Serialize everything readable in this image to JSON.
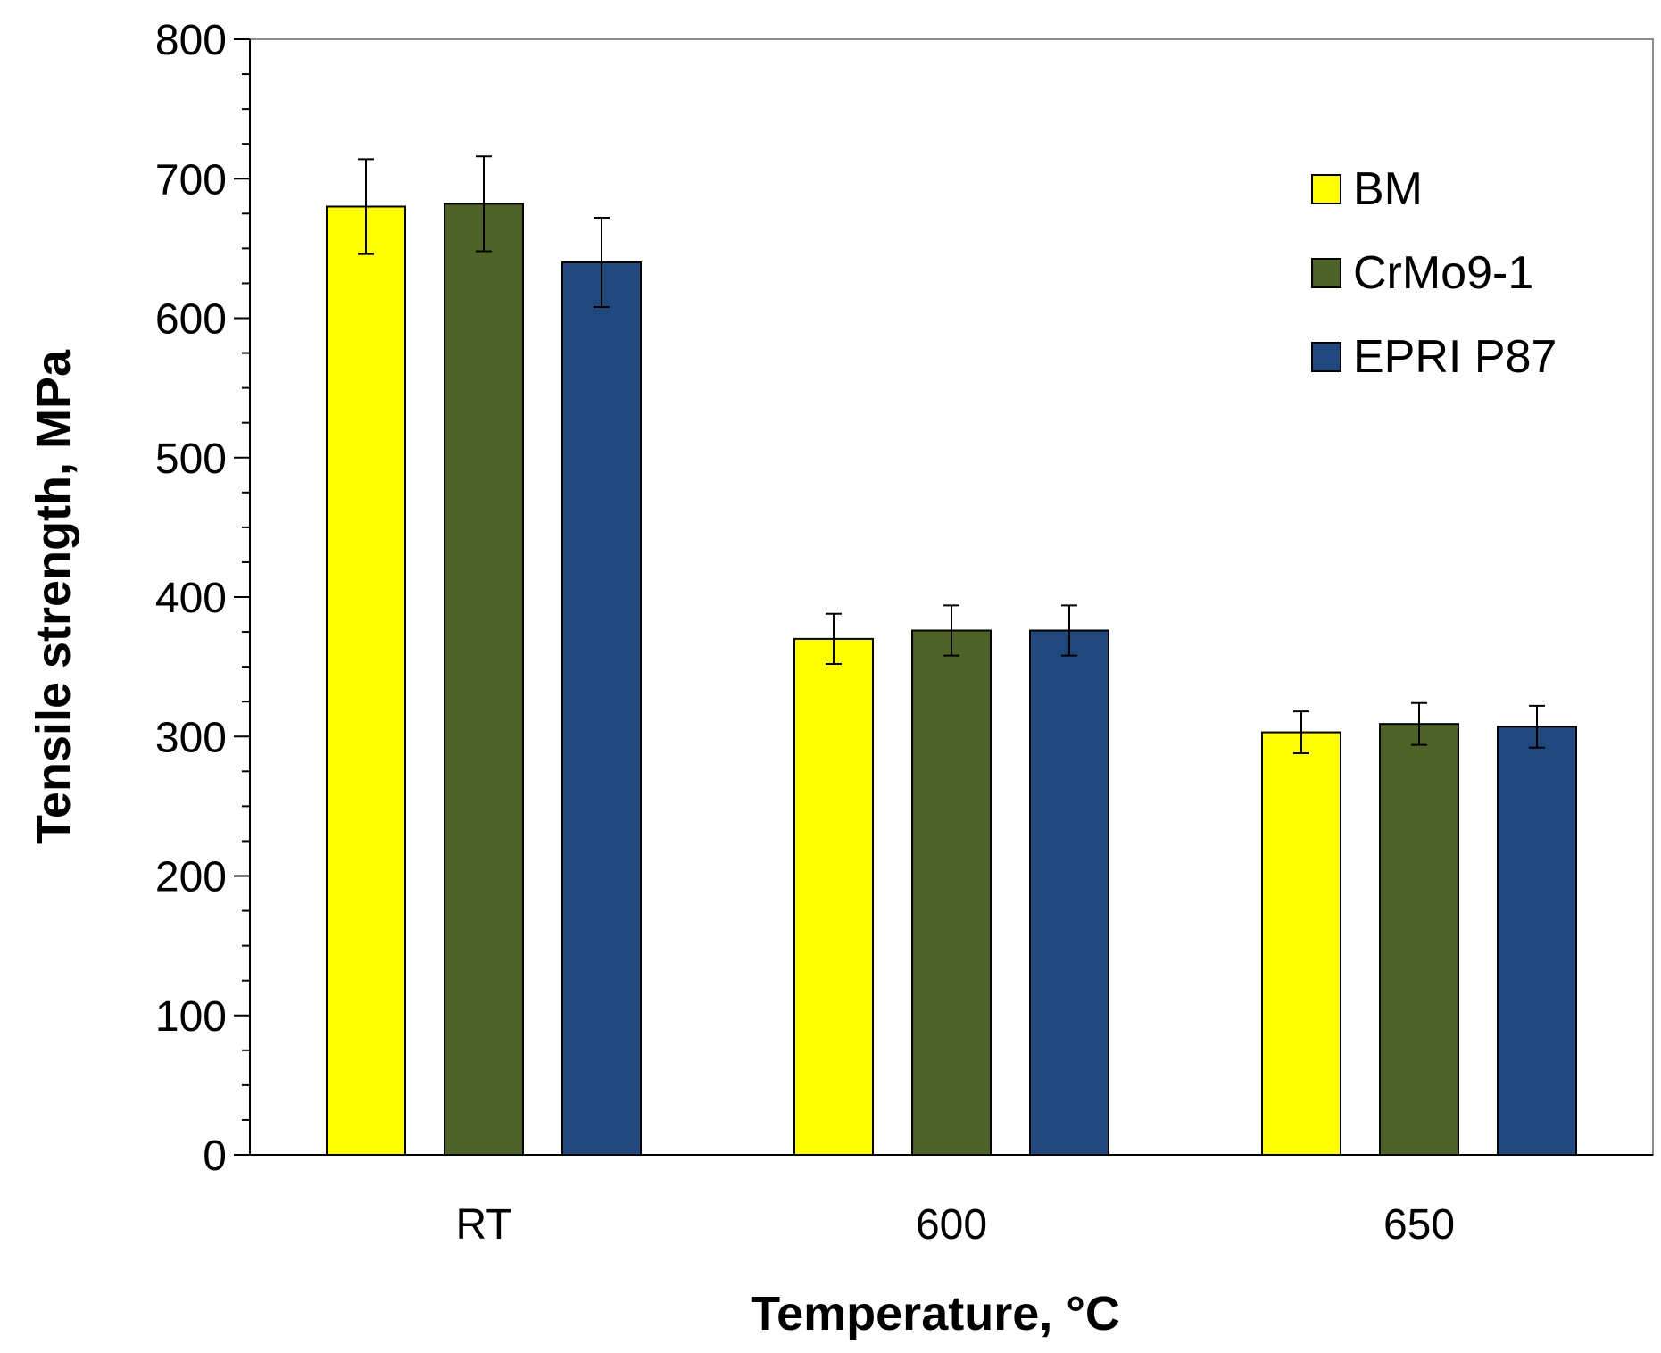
{
  "chart_data": {
    "type": "bar",
    "title": "",
    "xlabel": "Temperature, °C",
    "ylabel": "Tensile strength, MPa",
    "categories": [
      "RT",
      "600",
      "650"
    ],
    "ylim": [
      0,
      800
    ],
    "ytick_step": 100,
    "yticks": [
      "0",
      "100",
      "200",
      "300",
      "400",
      "500",
      "600",
      "700",
      "800"
    ],
    "grid": false,
    "legend_position": "top-right",
    "series": [
      {
        "name": "BM",
        "color": "#ffff00",
        "values": [
          680,
          370,
          303
        ],
        "errors": [
          34,
          18,
          15
        ]
      },
      {
        "name": "CrMo9-1",
        "color": "#4f6228",
        "values": [
          682,
          376,
          309
        ],
        "errors": [
          34,
          18,
          15
        ]
      },
      {
        "name": "EPRI P87",
        "color": "#1f497d",
        "values": [
          640,
          376,
          307
        ],
        "errors": [
          32,
          18,
          15
        ]
      }
    ]
  }
}
